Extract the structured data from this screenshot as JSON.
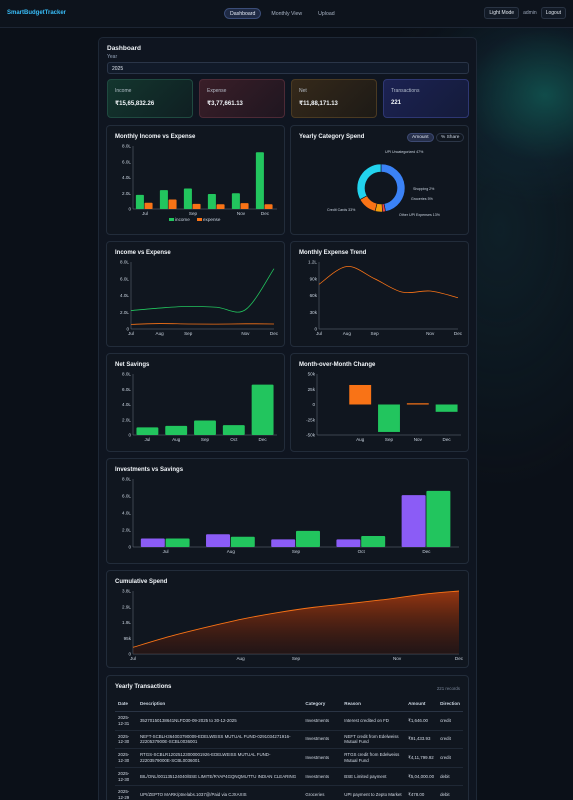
{
  "nav": {
    "brand": "SmartBudgetTracker",
    "tabs": [
      "Dashboard",
      "Monthly View",
      "Upload"
    ],
    "active_tab": 0,
    "light_mode_label": "Light Mode",
    "user": "admin",
    "logout_label": "Logout"
  },
  "page": {
    "title": "Dashboard",
    "year_label": "Year",
    "year_value": "2025"
  },
  "kpis": [
    {
      "label": "Income",
      "value": "₹15,65,832.26"
    },
    {
      "label": "Expense",
      "value": "₹3,77,661.13"
    },
    {
      "label": "Net",
      "value": "₹11,88,171.13"
    },
    {
      "label": "Transactions",
      "value": "221"
    }
  ],
  "colors": {
    "income": "#22c55e",
    "expense": "#f97316",
    "investments": "#8b5cf6",
    "accent": "#38bdf8"
  },
  "charts": {
    "monthly": {
      "title": "Monthly Income vs Expense",
      "categories": [
        "Jul",
        "Aug",
        "Sep",
        "Oct",
        "Nov",
        "Dec"
      ],
      "x_tick_labels": [
        "Jul",
        "Sep",
        "Nov",
        "Dec"
      ],
      "y_ticks": [
        "0",
        "2.0L",
        "4.0L",
        "6.0L",
        "8.0L"
      ],
      "ymax": 800000,
      "legend": [
        "income",
        "expense"
      ],
      "series": [
        {
          "name": "income",
          "values": [
            180000,
            240000,
            260000,
            190000,
            200000,
            720000
          ]
        },
        {
          "name": "expense",
          "values": [
            80000,
            120000,
            65000,
            60000,
            75000,
            60000
          ]
        }
      ]
    },
    "category": {
      "title": "Yearly Category Spend",
      "toggle": [
        "Amount",
        "% Share"
      ],
      "slices": [
        {
          "label": "UPI Uncategorized 47%",
          "value": 47,
          "color": "#3b82f6"
        },
        {
          "label": "Shopping 2%",
          "value": 2,
          "color": "#ef4444"
        },
        {
          "label": "Groceries 5%",
          "value": 5,
          "color": "#f59e0b"
        },
        {
          "label": "Other UPI Expenses 13%",
          "value": 13,
          "color": "#f97316"
        },
        {
          "label": "Credit Cards 33%",
          "value": 33,
          "color": "#22d3ee"
        }
      ]
    },
    "income_expense": {
      "title": "Income vs Expense",
      "categories": [
        "Jul",
        "Aug",
        "Sep",
        "Oct",
        "Nov",
        "Dec"
      ],
      "x_tick_labels": [
        "Jul",
        "Aug",
        "Sep",
        "Nov",
        "Dec"
      ],
      "y_ticks": [
        "0",
        "2.0L",
        "4.0L",
        "6.0L",
        "8.0L"
      ],
      "ymax": 800000,
      "series": [
        {
          "name": "Income",
          "values": [
            220000,
            250000,
            270000,
            260000,
            230000,
            720000
          ]
        },
        {
          "name": "Expense",
          "values": [
            55000,
            65000,
            60000,
            58000,
            62000,
            60000
          ]
        }
      ]
    },
    "expense_trend": {
      "title": "Monthly Expense Trend",
      "categories": [
        "Jul",
        "Aug",
        "Sep",
        "Oct",
        "Nov",
        "Dec"
      ],
      "x_tick_labels": [
        "Jul",
        "Aug",
        "Sep",
        "Nov",
        "Dec"
      ],
      "y_ticks": [
        "0",
        "30k",
        "60k",
        "90k",
        "1.2L"
      ],
      "ymax": 120000,
      "values": [
        80000,
        112000,
        90000,
        66000,
        68000,
        56000
      ]
    },
    "net_savings": {
      "title": "Net Savings",
      "categories": [
        "Jul",
        "Aug",
        "Sep",
        "Oct",
        "Dec"
      ],
      "y_ticks": [
        "0",
        "2.0L",
        "4.0L",
        "6.0L",
        "8.0L"
      ],
      "ymax": 800000,
      "values": [
        100000,
        120000,
        190000,
        130000,
        660000
      ]
    },
    "mom_change": {
      "title": "Month-over-Month Change",
      "categories": [
        "Aug",
        "Sep",
        "Nov",
        "Dec"
      ],
      "slot_count": 5,
      "slot_index": [
        1,
        2,
        3,
        4
      ],
      "y_ticks": [
        "-50k",
        "-25k",
        "0",
        "25k",
        "50k"
      ],
      "ymin": -50000,
      "ymax": 50000,
      "values": [
        32000,
        -45000,
        2000,
        -12000
      ]
    },
    "investments": {
      "title": "Investments vs Savings",
      "categories": [
        "Jul",
        "Aug",
        "Sep",
        "Oct",
        "Dec"
      ],
      "y_ticks": [
        "0",
        "2.0L",
        "4.0L",
        "6.0L",
        "8.0L"
      ],
      "ymax": 800000,
      "series": [
        {
          "name": "Investments",
          "values": [
            100000,
            150000,
            90000,
            90000,
            610000
          ]
        },
        {
          "name": "Savings",
          "values": [
            100000,
            120000,
            190000,
            130000,
            660000
          ]
        }
      ]
    },
    "cumulative": {
      "title": "Cumulative Spend",
      "x_tick_labels": [
        "Jul",
        "Aug",
        "Sep",
        "Nov",
        "Dec"
      ],
      "y_ticks": [
        "0",
        "95k",
        "1.9L",
        "2.9L",
        "3.8L"
      ],
      "ymax": 380000,
      "values": [
        40000,
        105000,
        160000,
        210000,
        250000,
        282000,
        305000,
        330000,
        360000,
        380000
      ]
    }
  },
  "transactions": {
    "title": "Yearly Transactions",
    "records": "221 records",
    "columns": [
      "Date",
      "Description",
      "Category",
      "Reason",
      "Amount",
      "Direction"
    ],
    "rows": [
      [
        "2025-12-31",
        "35270150138641NLFD30-09-2025 to 30-12-2025",
        "Investments",
        "Interest credited on FD",
        "₹1,646.00",
        "credit"
      ],
      [
        "2025-12-30",
        "NEFT-SCBLH364003790009-EDELWEISS MUTUAL FUND-0291034271916-2220537900E-SCBL0036001",
        "Investments",
        "NEFT credit from Edelweiss Mutual Fund",
        "₹91,433.93",
        "credit"
      ],
      [
        "2025-12-30",
        "RTGS-SCBLR12025123000001926-EDELWEISS MUTUAL FUND-22203579000E-SCBL0036001",
        "Investments",
        "RTGS credit from Edelweiss Mutual Fund",
        "₹4,11,799.92",
        "credit"
      ],
      [
        "2025-12-30",
        "BIL/ONL/001135124040/BSE LIMITE/RYAP4GQNQMUTTU INDIAN CLEARING",
        "Investments",
        "BSE Limited payment",
        "₹5,04,000.00",
        "debit"
      ],
      [
        "2025-12-29",
        "UPI/ZEPTO MARK/ptnelabs.1037@/Paid via CJXAXIS",
        "Groceries",
        "UPI payment to Zepto Market",
        "₹478.00",
        "debit"
      ]
    ]
  }
}
